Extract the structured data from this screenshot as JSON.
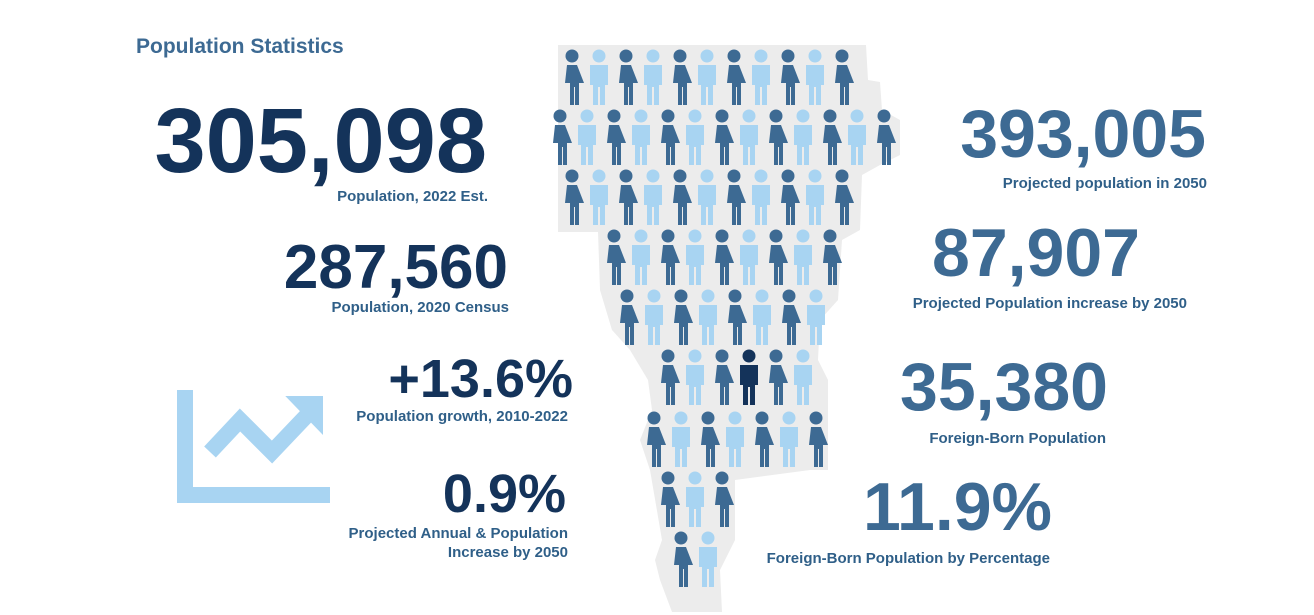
{
  "title": "Population Statistics",
  "stats": [
    {
      "value": "305,098",
      "label": [
        "Population, 2022 Est."
      ]
    },
    {
      "value": "287,560",
      "label": [
        "Population, 2020 Census"
      ]
    },
    {
      "value": "+13.6%",
      "label": [
        "Population growth, 2010-2022"
      ]
    },
    {
      "value": "0.9%",
      "label": [
        "Projected Annual & Population",
        "Increase by 2050"
      ]
    },
    {
      "value": "393,005",
      "label": [
        "Projected population in 2050"
      ]
    },
    {
      "value": "87,907",
      "label": [
        "Projected Population increase by 2050"
      ]
    },
    {
      "value": "35,380",
      "label": [
        "Foreign-Born Population"
      ]
    },
    {
      "value": "11.9%",
      "label": [
        "Foreign-Born Population by Percentage"
      ]
    }
  ]
}
